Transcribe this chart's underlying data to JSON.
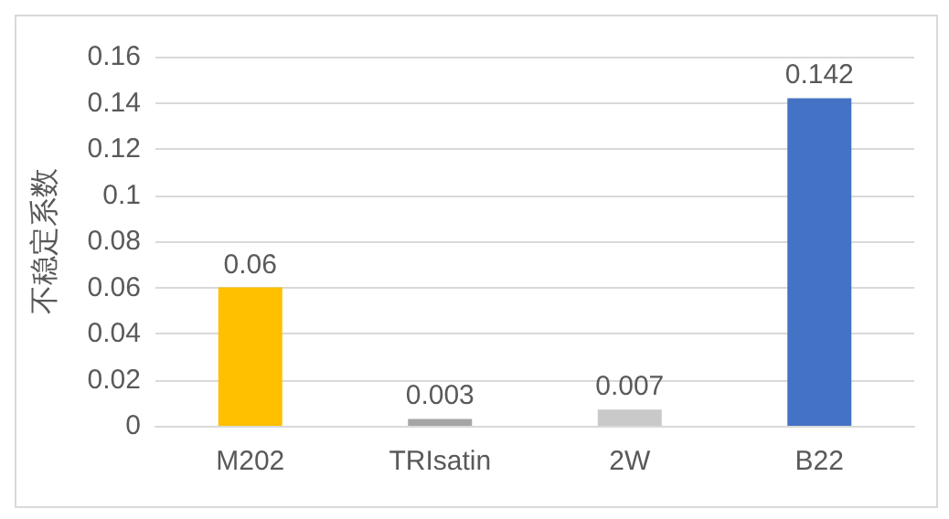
{
  "chart_data": {
    "type": "bar",
    "ylabel": "不稳定系数",
    "categories": [
      "M202",
      "TRIsatin",
      "2W",
      "B22"
    ],
    "values": [
      0.06,
      0.003,
      0.007,
      0.142
    ],
    "colors": [
      "#ffc000",
      "#a5a5a5",
      "#c9c9c9",
      "#4472c4"
    ],
    "ylim": [
      0,
      0.16
    ],
    "yticks": [
      0,
      0.02,
      0.04,
      0.06,
      0.08,
      0.1,
      0.12,
      0.14,
      0.16
    ],
    "grid": "y",
    "data_labels": true
  }
}
